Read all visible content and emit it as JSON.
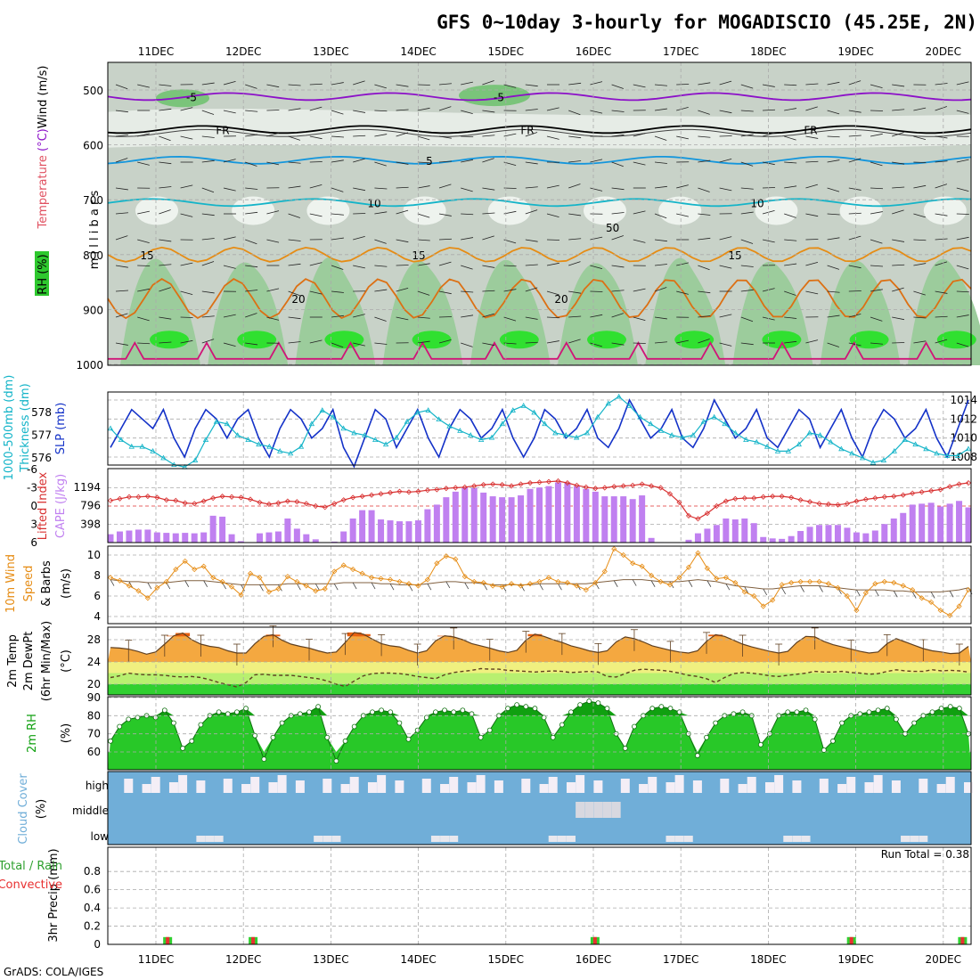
{
  "title": "GFS 0~10day 3-hourly for MOGADISCIO (45.25E, 2N)",
  "footer": "GrADS: COLA/IGES",
  "run_total": "Run Total = 0.38",
  "chart_data": [
    {
      "id": "upper-air",
      "type": "heatmap",
      "xlabel": "Date",
      "ylabel": "millibars",
      "legend": [
        "RH (%)",
        "Temperature (°C)",
        "Wind (m/s)"
      ],
      "dates": [
        "11DEC",
        "12DEC",
        "13DEC",
        "14DEC",
        "15DEC",
        "16DEC",
        "17DEC",
        "18DEC",
        "19DEC",
        "20DEC"
      ],
      "levels": [
        500,
        600,
        700,
        800,
        900,
        1000
      ],
      "isotherm_labels": [
        "-5",
        "FR",
        "5",
        "10",
        "15",
        "20"
      ],
      "isotherms": [
        {
          "label": "-5",
          "color": "#8c10c8",
          "p": 512
        },
        {
          "label": "FR",
          "color": "#000000",
          "p": 572
        },
        {
          "label": "5",
          "color": "#1496dc",
          "p": 628
        },
        {
          "label": "10",
          "color": "#14b4c8",
          "p": 705
        },
        {
          "label": "15",
          "color": "#e68c14",
          "p": 800
        },
        {
          "label": "20",
          "color": "#dc7014",
          "p": 880
        }
      ],
      "rh_label": "50"
    },
    {
      "id": "slp-thickness",
      "type": "line",
      "ylabel": "SLP (mb)",
      "ylabel2": "1000-500mb Thickness (dm)",
      "yticks": [
        1008,
        1010,
        1012,
        1014
      ],
      "yticks2": [
        576,
        577,
        578
      ],
      "series": [
        {
          "name": "SLP",
          "color": "#1432c8",
          "values": [
            1009,
            1011,
            1013,
            1012,
            1011,
            1013,
            1010,
            1008,
            1011,
            1013,
            1012,
            1010,
            1012,
            1013,
            1010,
            1008,
            1011,
            1013,
            1012,
            1010,
            1011,
            1013,
            1009,
            1007,
            1010,
            1013,
            1012,
            1009,
            1011,
            1013,
            1010,
            1008,
            1011,
            1013,
            1012,
            1010,
            1011,
            1013,
            1010,
            1008,
            1010,
            1013,
            1012,
            1010,
            1011,
            1013,
            1010,
            1009,
            1011,
            1014,
            1012,
            1010,
            1011,
            1013,
            1010,
            1009,
            1011,
            1014,
            1012,
            1010,
            1011,
            1013,
            1010,
            1009,
            1011,
            1013,
            1012,
            1009,
            1011,
            1013,
            1010,
            1008,
            1011,
            1013,
            1012,
            1010,
            1011,
            1013,
            1010,
            1008,
            1011,
            1014
          ]
        },
        {
          "name": "Thickness",
          "color": "#14b4c8",
          "values": [
            577.3,
            576.8,
            576.5,
            576.5,
            576.3,
            576.0,
            575.7,
            575.6,
            575.9,
            576.8,
            577.6,
            577.5,
            577.0,
            576.8,
            576.6,
            576.5,
            576.3,
            576.2,
            576.5,
            577.5,
            578.1,
            577.8,
            577.3,
            577.1,
            577.0,
            576.8,
            576.6,
            576.9,
            577.6,
            578.0,
            578.1,
            577.7,
            577.4,
            577.2,
            577.0,
            576.8,
            576.9,
            577.5,
            578.1,
            578.3,
            578.0,
            577.5,
            577.1,
            577.0,
            576.9,
            577.1,
            577.8,
            578.4,
            578.7,
            578.3,
            577.8,
            577.5,
            577.2,
            577.0,
            576.9,
            577.0,
            577.6,
            577.8,
            577.5,
            577.1,
            576.8,
            576.7,
            576.5,
            576.3,
            576.3,
            576.6,
            577.1,
            577.0,
            576.7,
            576.4,
            576.2,
            576.0,
            575.8,
            575.9,
            576.3,
            576.8,
            576.6,
            576.4,
            576.2,
            576.1,
            576.1,
            576.4
          ]
        }
      ]
    },
    {
      "id": "cape-li",
      "type": "bar",
      "ylabel": "CAPE (J/kg)",
      "ylabel2": "Lifted Index",
      "yticks": [
        398,
        796,
        1194
      ],
      "yticks2": [
        6,
        3,
        0,
        -3,
        -6
      ],
      "cape": [
        180,
        240,
        260,
        280,
        280,
        220,
        210,
        200,
        210,
        200,
        220,
        580,
        560,
        180,
        30,
        0,
        200,
        220,
        240,
        520,
        300,
        180,
        70,
        0,
        20,
        240,
        520,
        700,
        700,
        500,
        480,
        460,
        460,
        480,
        720,
        820,
        980,
        1100,
        1200,
        1180,
        1080,
        1000,
        980,
        980,
        1020,
        1160,
        1190,
        1220,
        1300,
        1300,
        1220,
        1160,
        1100,
        1000,
        1000,
        1000,
        940,
        1020,
        100,
        10,
        0,
        0,
        60,
        200,
        300,
        380,
        520,
        500,
        520,
        420,
        120,
        90,
        80,
        140,
        250,
        340,
        380,
        380,
        380,
        320,
        220,
        200,
        260,
        400,
        520,
        640,
        820,
        840,
        860,
        780,
        840,
        900,
        760
      ],
      "li": [
        -0.9,
        -1.2,
        -1.5,
        -1.5,
        -1.6,
        -1.4,
        -1.0,
        -0.9,
        -0.5,
        -0.4,
        -0.8,
        -1.3,
        -1.6,
        -1.5,
        -1.4,
        -1.1,
        -0.6,
        -0.3,
        -0.5,
        -0.8,
        -0.7,
        -0.4,
        0.0,
        0.2,
        -0.4,
        -1.0,
        -1.4,
        -1.6,
        -1.8,
        -2.0,
        -2.2,
        -2.4,
        -2.3,
        -2.4,
        -2.6,
        -2.7,
        -2.9,
        -3.0,
        -3.1,
        -3.3,
        -3.5,
        -3.6,
        -3.5,
        -3.3,
        -3.6,
        -3.8,
        -3.9,
        -4.0,
        -4.1,
        -3.8,
        -3.4,
        -3.1,
        -2.9,
        -3.0,
        -3.2,
        -3.3,
        -3.4,
        -3.6,
        -3.3,
        -3.0,
        -2.0,
        -0.6,
        1.6,
        2.1,
        1.2,
        0.0,
        -0.8,
        -1.2,
        -1.3,
        -1.3,
        -1.5,
        -1.6,
        -1.6,
        -1.4,
        -1.0,
        -0.7,
        -0.4,
        -0.3,
        -0.2,
        -0.4,
        -0.8,
        -1.1,
        -1.3,
        -1.5,
        -1.6,
        -1.8,
        -2.1,
        -2.3,
        -2.5,
        -2.7,
        -3.2,
        -3.6,
        -3.8
      ]
    },
    {
      "id": "wind10m",
      "type": "line",
      "ylabel": "10m Wind Speed & Barbs (m/s)",
      "yticks": [
        4,
        6,
        8,
        10
      ],
      "series": [
        {
          "name": "Speed",
          "color": "#e68c14",
          "values": [
            7.8,
            7.5,
            7.0,
            6.5,
            5.8,
            6.8,
            7.4,
            8.6,
            9.4,
            8.6,
            8.9,
            7.8,
            7.4,
            6.9,
            6.1,
            8.2,
            7.8,
            6.4,
            6.7,
            7.9,
            7.4,
            7.0,
            6.5,
            6.7,
            8.4,
            9.0,
            8.6,
            8.2,
            7.8,
            7.7,
            7.6,
            7.4,
            7.2,
            7.0,
            7.6,
            9.2,
            9.9,
            9.6,
            7.9,
            7.4,
            7.3,
            7.0,
            6.9,
            7.2,
            7.0,
            7.2,
            7.4,
            7.8,
            7.4,
            7.3,
            7.0,
            6.6,
            7.3,
            8.4,
            10.6,
            10.0,
            9.2,
            8.9,
            8.0,
            7.4,
            7.1,
            7.8,
            8.8,
            10.2,
            8.7,
            7.7,
            7.8,
            7.3,
            6.4,
            6.0,
            5.0,
            5.6,
            7.1,
            7.3,
            7.4,
            7.4,
            7.4,
            7.2,
            6.8,
            6.0,
            4.6,
            6.3,
            7.2,
            7.4,
            7.3,
            7.0,
            6.6,
            5.8,
            5.4,
            4.6,
            4.1,
            5.0,
            6.6
          ]
        },
        {
          "name": "Mean",
          "color": "#806040",
          "values": [
            7.6,
            7.5,
            7.4,
            7.4,
            7.3,
            7.3,
            7.3,
            7.4,
            7.5,
            7.5,
            7.5,
            7.4,
            7.3,
            7.2,
            7.1,
            7.1,
            7.1,
            7.1,
            7.1,
            7.2,
            7.2,
            7.2,
            7.2,
            7.2,
            7.2,
            7.3,
            7.3,
            7.3,
            7.3,
            7.2,
            7.2,
            7.1,
            7.1,
            7.1,
            7.2,
            7.3,
            7.4,
            7.4,
            7.3,
            7.3,
            7.2,
            7.1,
            7.1,
            7.1,
            7.1,
            7.1,
            7.2,
            7.2,
            7.2,
            7.2,
            7.2,
            7.2,
            7.3,
            7.4,
            7.5,
            7.6,
            7.6,
            7.6,
            7.5,
            7.4,
            7.4,
            7.4,
            7.5,
            7.6,
            7.5,
            7.4,
            7.2,
            7.0,
            6.9,
            6.8,
            6.7,
            6.7,
            6.8,
            6.9,
            7.0,
            7.0,
            7.0,
            6.9,
            6.8,
            6.7,
            6.6,
            6.6,
            6.6,
            6.6,
            6.5,
            6.5,
            6.4,
            6.4,
            6.4,
            6.4,
            6.5,
            6.6,
            6.8
          ]
        }
      ]
    },
    {
      "id": "temp2m",
      "type": "area",
      "ylabel": "2m Temp",
      "ylabel2": "2m DewPt",
      "ylabel3": "(6hr Min/Max)",
      "yunit": "(°C)",
      "yticks": [
        20,
        24,
        28
      ],
      "temp": [
        26.6,
        26.5,
        26.3,
        25.9,
        25.4,
        25.8,
        27.2,
        28.7,
        29.2,
        28.0,
        27.2,
        26.8,
        26.6,
        26.0,
        25.6,
        25.6,
        27.3,
        28.6,
        28.9,
        27.9,
        27.2,
        26.8,
        26.5,
        26.0,
        25.6,
        25.8,
        27.5,
        29.3,
        29.0,
        28.1,
        27.3,
        26.9,
        26.7,
        26.1,
        25.6,
        26.0,
        27.8,
        28.7,
        28.5,
        28.0,
        27.3,
        26.9,
        26.5,
        26.0,
        25.7,
        26.1,
        27.9,
        29.0,
        28.6,
        28.0,
        27.5,
        26.9,
        26.5,
        26.0,
        25.7,
        26.0,
        27.6,
        28.5,
        28.2,
        27.6,
        26.9,
        26.5,
        26.1,
        25.8,
        25.6,
        26.0,
        27.7,
        28.9,
        28.6,
        27.9,
        27.2,
        26.7,
        26.3,
        25.9,
        25.6,
        25.9,
        27.5,
        28.6,
        28.5,
        27.7,
        27.1,
        26.7,
        26.3,
        25.9,
        25.6,
        25.8,
        27.3,
        28.2,
        27.6,
        27.0,
        26.4,
        26.0,
        25.8,
        25.5,
        25.6,
        26.8
      ],
      "dewpt": [
        21.2,
        21.5,
        22.0,
        21.8,
        21.7,
        21.7,
        21.6,
        21.4,
        21.3,
        21.4,
        21.2,
        20.8,
        20.3,
        19.9,
        19.5,
        20.3,
        21.7,
        21.8,
        21.6,
        21.6,
        21.6,
        21.4,
        21.2,
        21.0,
        20.6,
        20.0,
        19.6,
        20.6,
        21.5,
        21.9,
        22.0,
        22.0,
        21.9,
        21.7,
        21.4,
        21.2,
        21.0,
        21.7,
        22.1,
        22.3,
        22.5,
        22.8,
        22.7,
        22.7,
        22.5,
        22.4,
        22.3,
        22.2,
        22.3,
        22.4,
        22.3,
        22.1,
        22.2,
        22.3,
        22.2,
        21.4,
        21.3,
        21.9,
        22.5,
        22.7,
        22.6,
        22.5,
        22.3,
        22.0,
        21.6,
        21.4,
        21.0,
        20.3,
        21.2,
        21.9,
        22.1,
        22.0,
        21.8,
        21.5,
        21.4,
        21.6,
        21.8,
        22.0,
        22.3,
        22.2,
        22.2,
        22.3,
        22.1,
        22.0,
        21.8,
        21.9,
        22.3,
        22.6,
        22.4,
        22.3,
        22.3,
        22.6,
        22.4,
        22.5,
        22.4,
        22.2
      ]
    },
    {
      "id": "rh2m",
      "type": "area",
      "ylabel": "2m RH",
      "yunit": "(%)",
      "yticks": [
        60,
        70,
        80,
        90
      ],
      "rh": [
        66,
        74,
        78,
        79,
        80,
        79,
        83,
        76,
        62,
        66,
        75,
        80,
        82,
        81,
        82,
        84,
        69,
        56,
        68,
        76,
        80,
        81,
        82,
        85,
        68,
        55,
        66,
        74,
        80,
        82,
        83,
        82,
        76,
        67,
        72,
        79,
        82,
        83,
        82,
        83,
        81,
        68,
        72,
        80,
        84,
        86,
        85,
        84,
        79,
        68,
        75,
        82,
        86,
        88,
        87,
        84,
        70,
        62,
        74,
        80,
        84,
        85,
        84,
        82,
        70,
        58,
        68,
        76,
        80,
        81,
        82,
        80,
        64,
        70,
        80,
        82,
        82,
        83,
        78,
        61,
        66,
        76,
        80,
        81,
        82,
        83,
        84,
        78,
        70,
        76,
        80,
        82,
        84,
        85,
        84,
        70
      ]
    },
    {
      "id": "cloud-cover",
      "type": "bar",
      "ylabel": "Cloud Cover",
      "yunit": "(%)",
      "yticks": [
        "high",
        "middle",
        "low"
      ]
    },
    {
      "id": "precip",
      "type": "bar",
      "ylabel": "3hr Precip (mm)",
      "legend": [
        "Total / Rain",
        "Convective"
      ],
      "yticks": [
        0,
        0.2,
        0.4,
        0.6,
        0.8
      ],
      "events": [
        {
          "x": 7,
          "v": 0.08
        },
        {
          "x": 17,
          "v": 0.08
        },
        {
          "x": 57,
          "v": 0.08
        },
        {
          "x": 87,
          "v": 0.08
        },
        {
          "x": 100,
          "v": 0.08
        }
      ]
    }
  ]
}
